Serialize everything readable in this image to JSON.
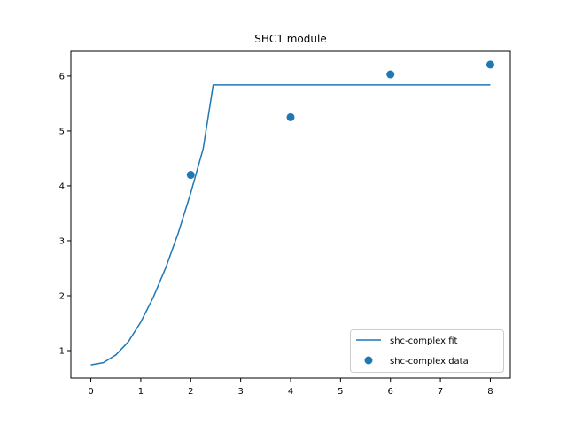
{
  "chart_data": {
    "type": "line",
    "title": "SHC1 module",
    "xlabel": "",
    "ylabel": "",
    "xlim": [
      -0.4,
      8.4
    ],
    "ylim": [
      0.5,
      6.45
    ],
    "xticks": [
      0,
      1,
      2,
      3,
      4,
      5,
      6,
      7,
      8
    ],
    "yticks": [
      1,
      2,
      3,
      4,
      5,
      6
    ],
    "grid": false,
    "legend_position": "lower-right",
    "series": [
      {
        "name": "shc-complex fit",
        "kind": "line",
        "color": "#1f77b4",
        "x": [
          0,
          0.25,
          0.5,
          0.75,
          1.0,
          1.25,
          1.5,
          1.75,
          2.0,
          2.25,
          2.45,
          3.0,
          4.0,
          5.0,
          6.0,
          7.0,
          8.0
        ],
        "y": [
          0.74,
          0.78,
          0.92,
          1.16,
          1.52,
          1.97,
          2.51,
          3.14,
          3.87,
          4.68,
          5.84,
          5.84,
          5.84,
          5.84,
          5.84,
          5.84,
          5.84
        ]
      },
      {
        "name": "shc-complex data",
        "kind": "scatter",
        "color": "#1f77b4",
        "x": [
          2,
          4,
          6,
          8
        ],
        "y": [
          4.2,
          5.25,
          6.03,
          6.21
        ]
      }
    ]
  }
}
